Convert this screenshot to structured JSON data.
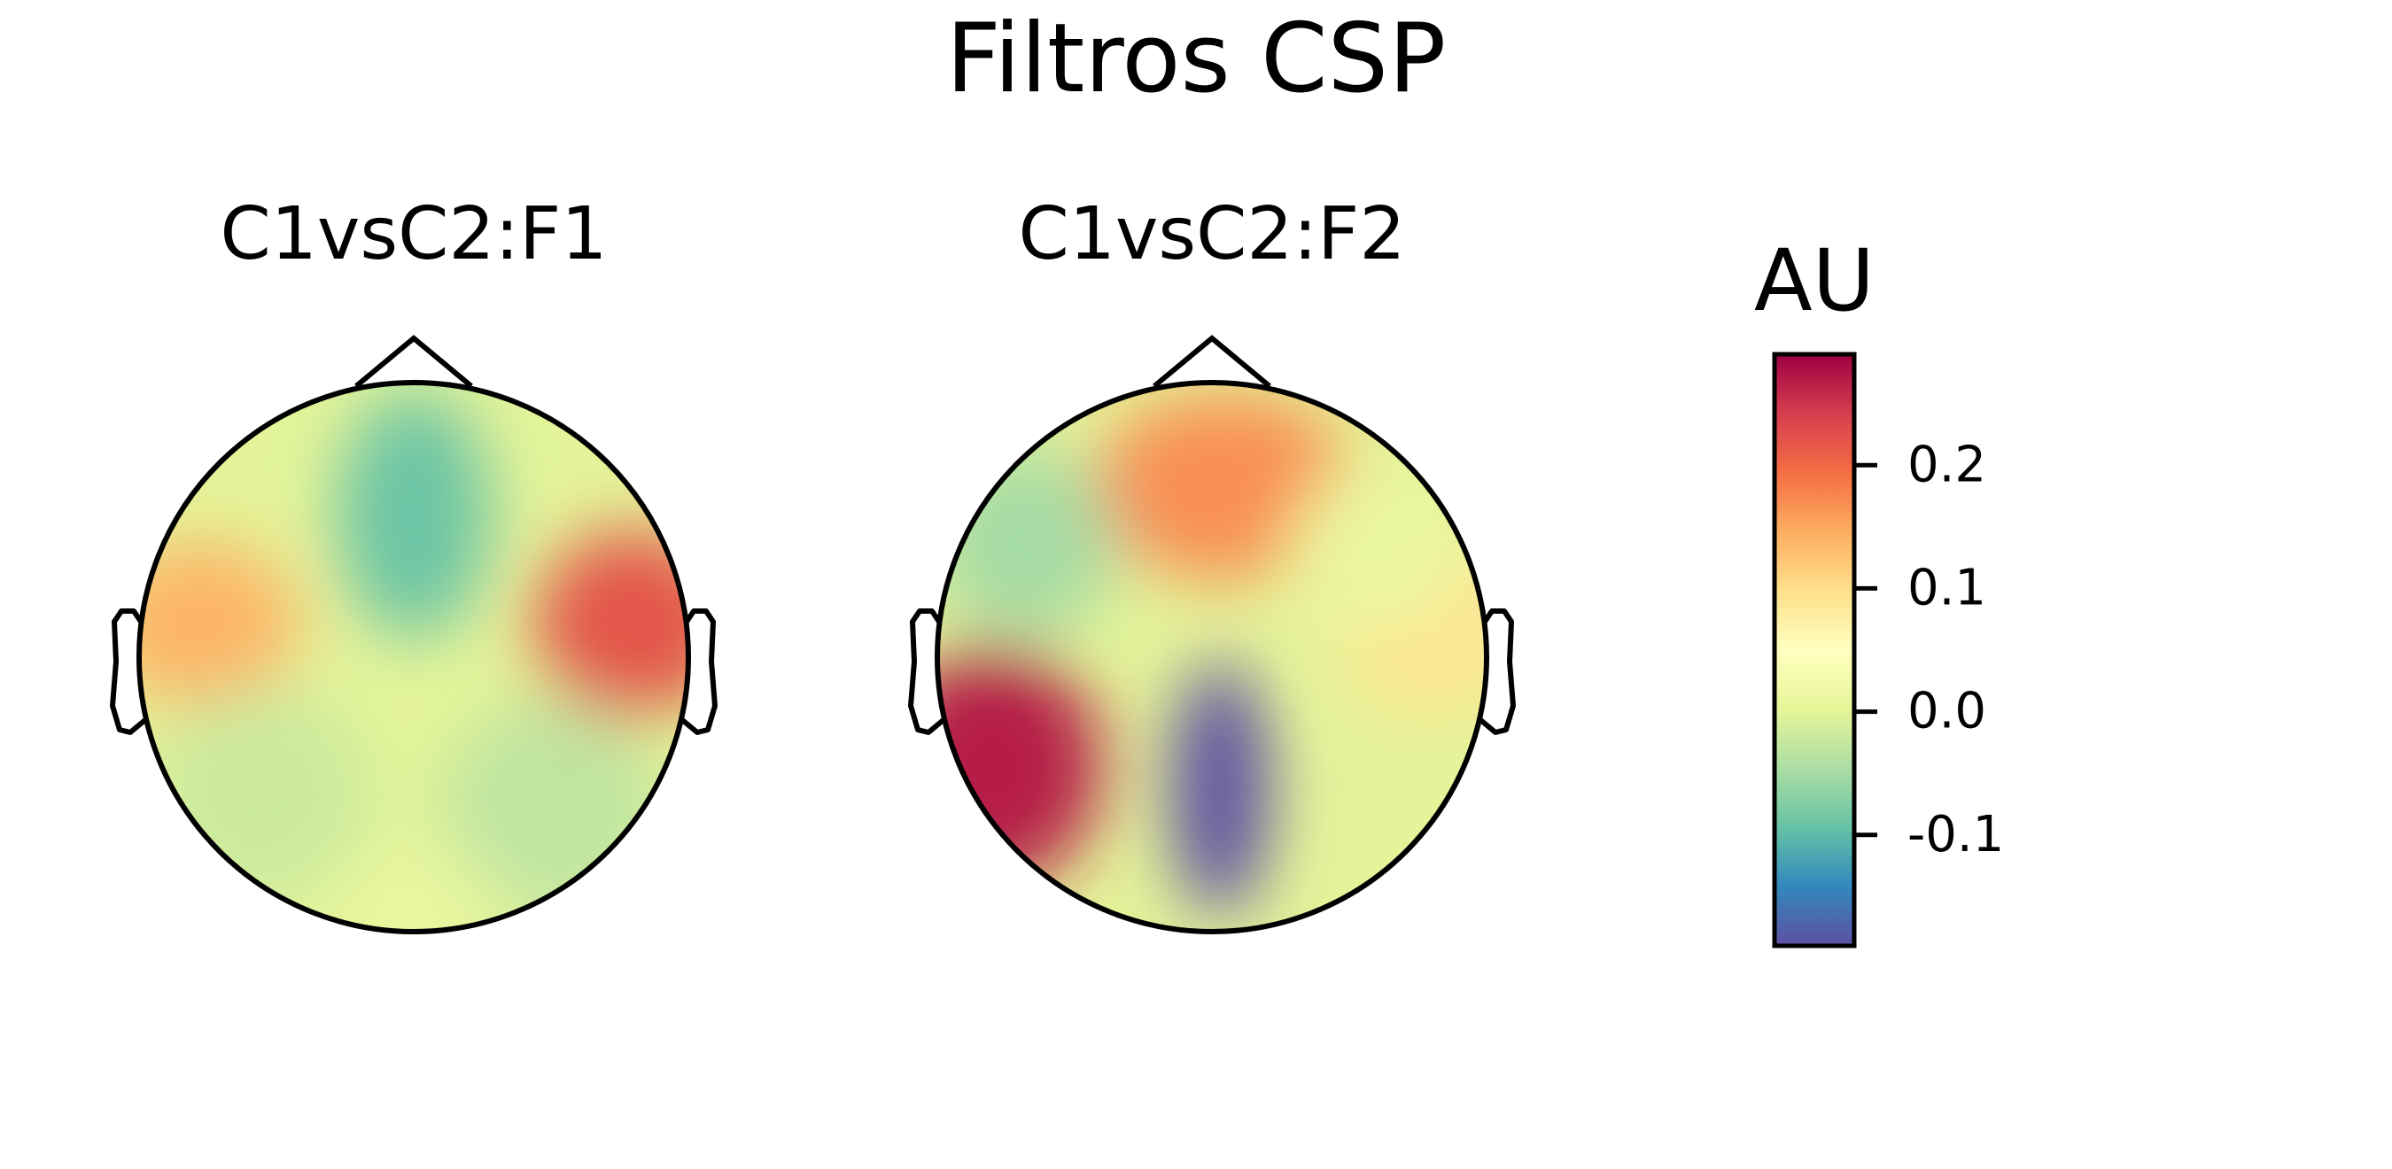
{
  "chart_data": {
    "type": "heatmap",
    "subtype": "eeg-topomap",
    "title": "Filtros CSP",
    "panels": [
      {
        "title": "C1vsC2:F1",
        "blobs": [
          {
            "region": "left-temporal",
            "value": 0.14
          },
          {
            "region": "right-temporal",
            "value": 0.22
          },
          {
            "region": "frontal-midline",
            "value": -0.09
          },
          {
            "region": "left-posterior",
            "value": -0.02
          },
          {
            "region": "right-posterior",
            "value": -0.03
          },
          {
            "region": "occipital",
            "value": 0.01
          }
        ]
      },
      {
        "title": "C1vsC2:F2",
        "blobs": [
          {
            "region": "frontal",
            "value": 0.17
          },
          {
            "region": "left-frontal",
            "value": -0.05
          },
          {
            "region": "left-parietal",
            "value": 0.27
          },
          {
            "region": "occipital-midline",
            "value": -0.19
          },
          {
            "region": "right-temporal",
            "value": 0.09
          },
          {
            "region": "right-frontal",
            "value": 0.01
          }
        ]
      }
    ],
    "colorbar": {
      "label": "AU",
      "colormap": "Spectral_r",
      "range": [
        -0.19,
        0.29
      ],
      "ticks": [
        -0.1,
        0.0,
        0.1,
        0.2
      ],
      "tick_labels": [
        "-0.1",
        "0.0",
        "0.1",
        "0.2"
      ]
    },
    "colors": {
      "stops": [
        "#5e4fa2",
        "#3288bd",
        "#66c2a5",
        "#abdda4",
        "#e6f598",
        "#ffffbf",
        "#fee08b",
        "#fdae61",
        "#f46d43",
        "#d53e4f",
        "#9e0142"
      ],
      "outline": "#000000"
    }
  }
}
